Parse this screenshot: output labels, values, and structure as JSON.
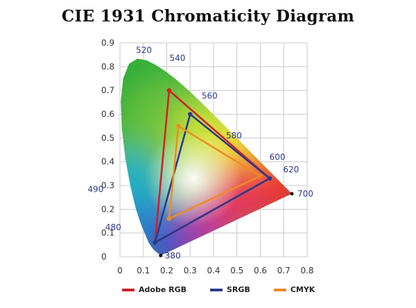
{
  "chart_data": {
    "type": "scatter",
    "title": "CIE 1931 Chromaticity Diagram",
    "xlabel": "",
    "ylabel": "",
    "xlim": [
      0,
      0.8
    ],
    "ylim": [
      0,
      0.9
    ],
    "grid": true,
    "x_ticks": [
      "0",
      "0.1",
      "0.2",
      "0.3",
      "0.4",
      "0.5",
      "0.6",
      "0.7",
      "0.8"
    ],
    "y_ticks": [
      "0",
      "0.1",
      "0.2",
      "0.3",
      "0.4",
      "0.5",
      "0.6",
      "0.7",
      "0.8",
      "0.9"
    ],
    "spectral_locus": [
      {
        "x": 0.1741,
        "y": 0.005
      },
      {
        "x": 0.144,
        "y": 0.0297
      },
      {
        "x": 0.1241,
        "y": 0.0578
      },
      {
        "x": 0.0913,
        "y": 0.1327
      },
      {
        "x": 0.0687,
        "y": 0.2007
      },
      {
        "x": 0.0454,
        "y": 0.295
      },
      {
        "x": 0.0235,
        "y": 0.4127
      },
      {
        "x": 0.0082,
        "y": 0.5384
      },
      {
        "x": 0.0039,
        "y": 0.6548
      },
      {
        "x": 0.0139,
        "y": 0.7502
      },
      {
        "x": 0.0389,
        "y": 0.812
      },
      {
        "x": 0.0743,
        "y": 0.8338
      },
      {
        "x": 0.1142,
        "y": 0.8262
      },
      {
        "x": 0.1547,
        "y": 0.8059
      },
      {
        "x": 0.1929,
        "y": 0.7816
      },
      {
        "x": 0.2296,
        "y": 0.7543
      },
      {
        "x": 0.2658,
        "y": 0.7243
      },
      {
        "x": 0.3016,
        "y": 0.6923
      },
      {
        "x": 0.3373,
        "y": 0.6589
      },
      {
        "x": 0.3731,
        "y": 0.6245
      },
      {
        "x": 0.4087,
        "y": 0.5896
      },
      {
        "x": 0.4441,
        "y": 0.5547
      },
      {
        "x": 0.4788,
        "y": 0.5202
      },
      {
        "x": 0.5125,
        "y": 0.4866
      },
      {
        "x": 0.5448,
        "y": 0.4544
      },
      {
        "x": 0.5752,
        "y": 0.4242
      },
      {
        "x": 0.6029,
        "y": 0.3965
      },
      {
        "x": 0.627,
        "y": 0.3725
      },
      {
        "x": 0.6482,
        "y": 0.3514
      },
      {
        "x": 0.6658,
        "y": 0.334
      },
      {
        "x": 0.6915,
        "y": 0.3083
      },
      {
        "x": 0.7347,
        "y": 0.2653
      }
    ],
    "wavelength_labels": [
      {
        "label": "380",
        "x": 0.1741,
        "y": 0.005
      },
      {
        "label": "480",
        "x": 0.0913,
        "y": 0.1327
      },
      {
        "label": "490",
        "x": 0.0454,
        "y": 0.295
      },
      {
        "label": "520",
        "x": 0.0743,
        "y": 0.8338
      },
      {
        "label": "540",
        "x": 0.2296,
        "y": 0.7543
      },
      {
        "label": "560",
        "x": 0.3731,
        "y": 0.6245
      },
      {
        "label": "580",
        "x": 0.5125,
        "y": 0.4866
      },
      {
        "label": "600",
        "x": 0.627,
        "y": 0.3725
      },
      {
        "label": "620",
        "x": 0.6915,
        "y": 0.3083
      },
      {
        "label": "700",
        "x": 0.7347,
        "y": 0.2653
      }
    ],
    "series": [
      {
        "name": "Adobe RGB",
        "color": "#d0202a",
        "points": [
          [
            0.21,
            0.7
          ],
          [
            0.64,
            0.33
          ],
          [
            0.15,
            0.06
          ]
        ]
      },
      {
        "name": "SRGB",
        "color": "#2a3a8a",
        "points": [
          [
            0.3,
            0.6
          ],
          [
            0.64,
            0.33
          ],
          [
            0.15,
            0.06
          ]
        ]
      },
      {
        "name": "CMYK",
        "color": "#f08a24",
        "points": [
          [
            0.25,
            0.55
          ],
          [
            0.6,
            0.34
          ],
          [
            0.21,
            0.16
          ]
        ]
      }
    ],
    "white_point": {
      "x": 0.3127,
      "y": 0.329
    }
  }
}
